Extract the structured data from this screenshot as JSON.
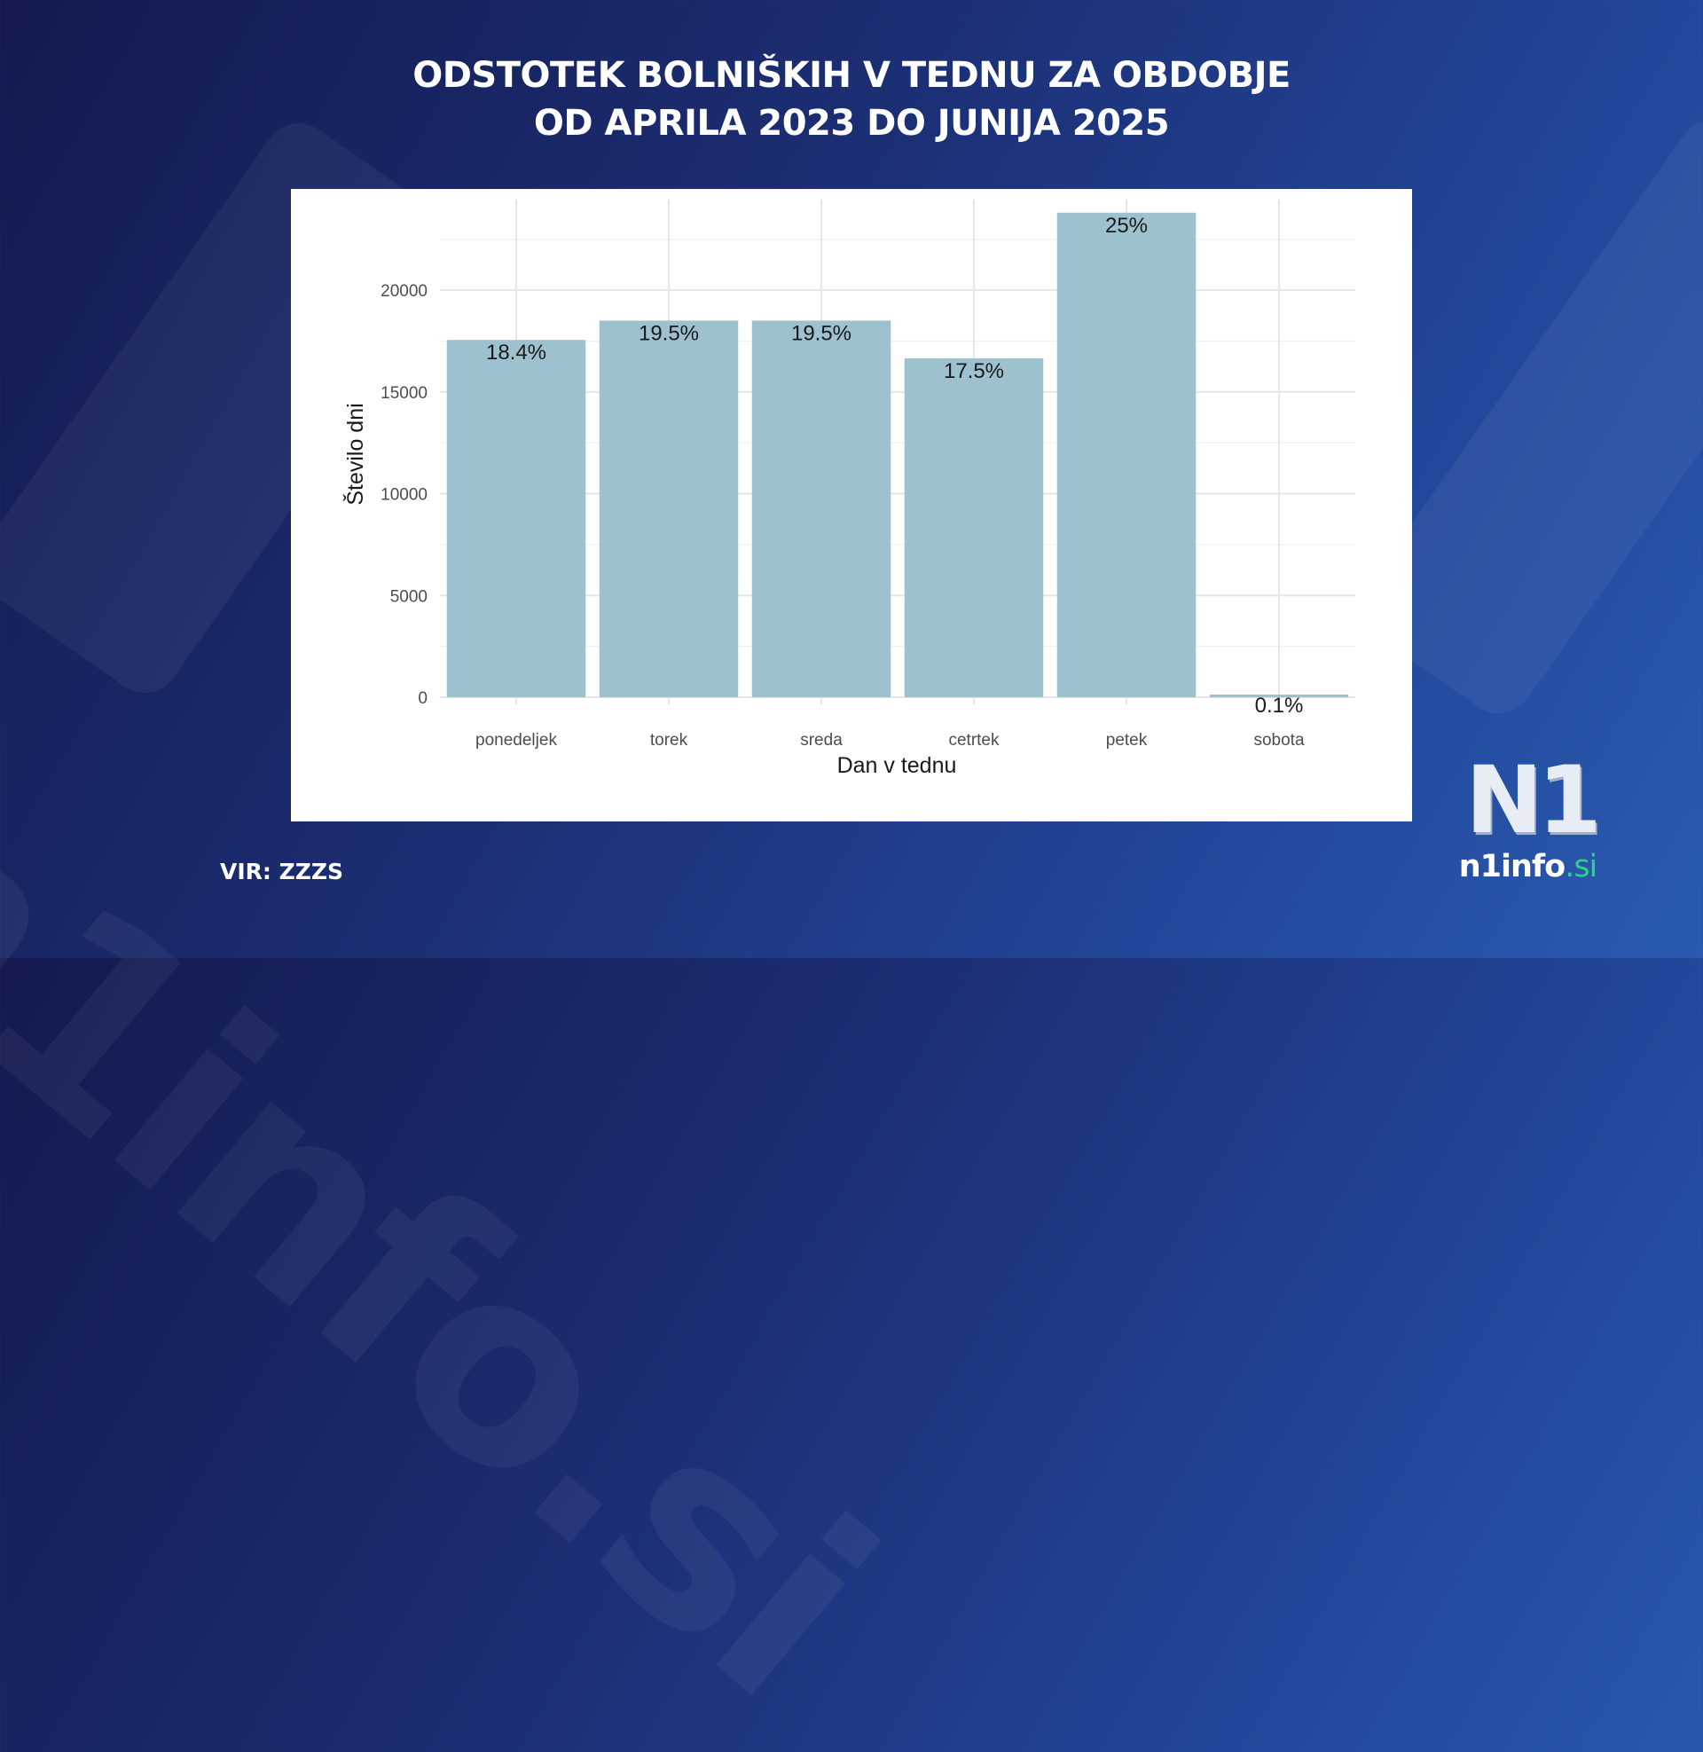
{
  "header": {
    "title_line1": "ODSTOTEK BOLNIŠKIH V TEDNU ZA OBDOBJE",
    "title_line2": "OD APRILA 2023 DO JUNIJA 2025"
  },
  "footer": {
    "source": "VIR: ZZZS"
  },
  "brand": {
    "logo_mark": "N1",
    "domain_name": "n1info",
    "domain_tld": ".si",
    "accent_color": "#2fd08a"
  },
  "chart_data": {
    "type": "bar",
    "categories": [
      "ponedeljek",
      "torek",
      "sreda",
      "cetrtek",
      "petek",
      "sobota"
    ],
    "values": [
      17550,
      18500,
      18500,
      16650,
      23800,
      100
    ],
    "data_labels": [
      "18.4%",
      "19.5%",
      "19.5%",
      "17.5%",
      "25%",
      "0.1%"
    ],
    "xlabel": "Dan v tednu",
    "ylabel": "Število dni",
    "ylim": [
      0,
      25000
    ],
    "yticks": [
      0,
      5000,
      10000,
      15000,
      20000
    ],
    "yticks_labels": [
      "0",
      "5000",
      "10000",
      "15000",
      "20000"
    ],
    "grid": true,
    "bar_color": "#9dc1cf"
  }
}
